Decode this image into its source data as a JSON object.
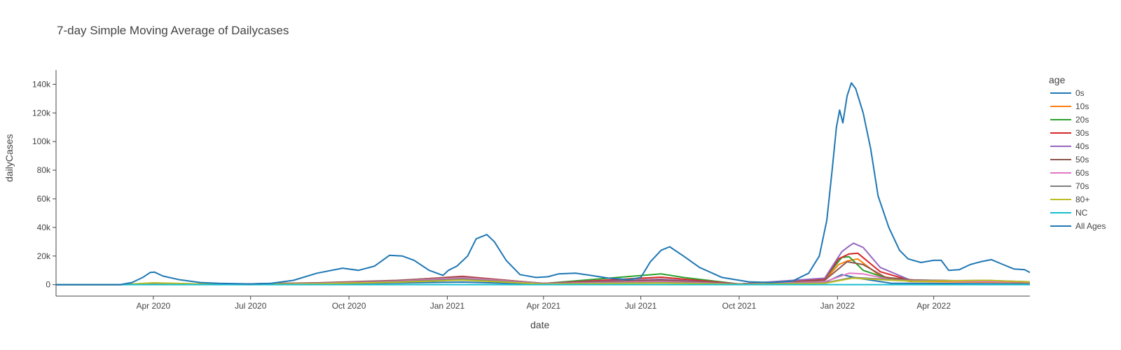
{
  "chart_data": {
    "type": "line",
    "title": "7-day Simple Moving Average of Dailycases",
    "xlabel": "date",
    "ylabel": "dailyCases",
    "legend_title": "age",
    "legend_position": "right",
    "grid": false,
    "x_range": [
      "2020-01-01",
      "2022-06-30"
    ],
    "ylim": [
      -8000,
      150000
    ],
    "x_ticks": [
      "Apr 2020",
      "Jul 2020",
      "Oct 2020",
      "Jan 2021",
      "Apr 2021",
      "Jul 2021",
      "Oct 2021",
      "Jan 2022",
      "Apr 2022"
    ],
    "x_tick_dates": [
      "2020-04-01",
      "2020-07-01",
      "2020-10-01",
      "2021-01-01",
      "2021-04-01",
      "2021-07-01",
      "2021-10-01",
      "2022-01-01",
      "2022-04-01"
    ],
    "y_ticks": [
      0,
      20000,
      40000,
      60000,
      80000,
      100000,
      120000,
      140000
    ],
    "y_tick_labels": [
      "0",
      "20k",
      "40k",
      "60k",
      "80k",
      "100k",
      "120k",
      "140k"
    ],
    "series": [
      {
        "name": "0s",
        "color": "#1f77b4",
        "points": [
          [
            "2020-01-01",
            0
          ],
          [
            "2020-03-01",
            0
          ],
          [
            "2020-04-01",
            300
          ],
          [
            "2020-06-01",
            100
          ],
          [
            "2020-09-01",
            400
          ],
          [
            "2020-11-15",
            1200
          ],
          [
            "2021-01-15",
            1800
          ],
          [
            "2021-04-01",
            300
          ],
          [
            "2021-07-20",
            2600
          ],
          [
            "2021-10-01",
            300
          ],
          [
            "2021-12-20",
            1500
          ],
          [
            "2022-01-05",
            7000
          ],
          [
            "2022-01-20",
            4500
          ],
          [
            "2022-02-20",
            1000
          ],
          [
            "2022-06-30",
            500
          ]
        ]
      },
      {
        "name": "10s",
        "color": "#ff7f0e",
        "points": [
          [
            "2020-01-01",
            0
          ],
          [
            "2020-03-01",
            0
          ],
          [
            "2020-04-01",
            900
          ],
          [
            "2020-06-01",
            200
          ],
          [
            "2020-09-01",
            900
          ],
          [
            "2020-11-15",
            2100
          ],
          [
            "2021-01-15",
            3800
          ],
          [
            "2021-04-01",
            700
          ],
          [
            "2021-07-20",
            5200
          ],
          [
            "2021-10-01",
            400
          ],
          [
            "2021-12-20",
            3000
          ],
          [
            "2022-01-02",
            14000
          ],
          [
            "2022-01-10",
            16500
          ],
          [
            "2022-01-20",
            18000
          ],
          [
            "2022-02-10",
            6000
          ],
          [
            "2022-03-10",
            2200
          ],
          [
            "2022-06-30",
            1500
          ]
        ]
      },
      {
        "name": "20s",
        "color": "#2ca02c",
        "points": [
          [
            "2020-01-01",
            0
          ],
          [
            "2020-03-01",
            0
          ],
          [
            "2020-04-01",
            1100
          ],
          [
            "2020-06-01",
            200
          ],
          [
            "2020-09-01",
            1200
          ],
          [
            "2020-11-15",
            2600
          ],
          [
            "2021-01-15",
            4500
          ],
          [
            "2021-04-01",
            800
          ],
          [
            "2021-07-20",
            7500
          ],
          [
            "2021-08-10",
            5000
          ],
          [
            "2021-10-01",
            400
          ],
          [
            "2021-12-20",
            4000
          ],
          [
            "2022-01-05",
            19000
          ],
          [
            "2022-01-12",
            19500
          ],
          [
            "2022-01-25",
            10000
          ],
          [
            "2022-02-20",
            3500
          ],
          [
            "2022-06-30",
            1800
          ]
        ]
      },
      {
        "name": "30s",
        "color": "#d62728",
        "points": [
          [
            "2020-01-01",
            0
          ],
          [
            "2020-03-01",
            0
          ],
          [
            "2020-04-01",
            900
          ],
          [
            "2020-06-01",
            200
          ],
          [
            "2020-09-01",
            1100
          ],
          [
            "2020-11-15",
            2800
          ],
          [
            "2021-01-15",
            5800
          ],
          [
            "2021-04-01",
            800
          ],
          [
            "2021-07-20",
            5200
          ],
          [
            "2021-10-01",
            400
          ],
          [
            "2021-12-20",
            4000
          ],
          [
            "2022-01-02",
            18000
          ],
          [
            "2022-01-12",
            21500
          ],
          [
            "2022-01-20",
            22000
          ],
          [
            "2022-02-10",
            9000
          ],
          [
            "2022-03-10",
            3000
          ],
          [
            "2022-06-30",
            1800
          ]
        ]
      },
      {
        "name": "40s",
        "color": "#9467bd",
        "points": [
          [
            "2020-01-01",
            0
          ],
          [
            "2020-03-01",
            0
          ],
          [
            "2020-04-01",
            800
          ],
          [
            "2020-06-01",
            200
          ],
          [
            "2020-09-01",
            1100
          ],
          [
            "2020-11-15",
            2700
          ],
          [
            "2021-01-15",
            4800
          ],
          [
            "2021-04-01",
            900
          ],
          [
            "2021-07-20",
            3800
          ],
          [
            "2021-10-01",
            400
          ],
          [
            "2021-12-20",
            4500
          ],
          [
            "2022-01-05",
            23000
          ],
          [
            "2022-01-12",
            27000
          ],
          [
            "2022-01-16",
            29000
          ],
          [
            "2022-01-25",
            26000
          ],
          [
            "2022-02-10",
            12000
          ],
          [
            "2022-03-10",
            3200
          ],
          [
            "2022-06-30",
            2000
          ]
        ]
      },
      {
        "name": "50s",
        "color": "#8c564b",
        "points": [
          [
            "2020-01-01",
            0
          ],
          [
            "2020-03-01",
            0
          ],
          [
            "2020-04-01",
            700
          ],
          [
            "2020-06-01",
            200
          ],
          [
            "2020-09-01",
            1300
          ],
          [
            "2020-11-15",
            3000
          ],
          [
            "2021-01-15",
            5500
          ],
          [
            "2021-04-01",
            900
          ],
          [
            "2021-07-20",
            3200
          ],
          [
            "2021-10-01",
            400
          ],
          [
            "2021-12-20",
            3000
          ],
          [
            "2022-01-10",
            16000
          ],
          [
            "2022-01-25",
            14000
          ],
          [
            "2022-02-15",
            5000
          ],
          [
            "2022-03-15",
            3200
          ],
          [
            "2022-06-30",
            2000
          ]
        ]
      },
      {
        "name": "60s",
        "color": "#e377c2",
        "points": [
          [
            "2020-01-01",
            0
          ],
          [
            "2020-03-01",
            0
          ],
          [
            "2020-04-01",
            700
          ],
          [
            "2020-06-01",
            100
          ],
          [
            "2020-09-01",
            900
          ],
          [
            "2020-11-15",
            2400
          ],
          [
            "2021-01-15",
            4800
          ],
          [
            "2021-04-01",
            700
          ],
          [
            "2021-07-20",
            2200
          ],
          [
            "2021-10-01",
            300
          ],
          [
            "2021-12-20",
            2000
          ],
          [
            "2022-01-12",
            8000
          ],
          [
            "2022-01-25",
            7500
          ],
          [
            "2022-02-20",
            3500
          ],
          [
            "2022-03-15",
            2800
          ],
          [
            "2022-06-30",
            1800
          ]
        ]
      },
      {
        "name": "70s",
        "color": "#7f7f7f",
        "points": [
          [
            "2020-01-01",
            0
          ],
          [
            "2020-03-01",
            0
          ],
          [
            "2020-04-01",
            800
          ],
          [
            "2020-06-01",
            100
          ],
          [
            "2020-09-01",
            700
          ],
          [
            "2020-11-15",
            2000
          ],
          [
            "2021-01-15",
            4000
          ],
          [
            "2021-04-01",
            500
          ],
          [
            "2021-07-20",
            1500
          ],
          [
            "2021-10-01",
            300
          ],
          [
            "2021-12-20",
            1200
          ],
          [
            "2022-01-15",
            5000
          ],
          [
            "2022-02-10",
            4000
          ],
          [
            "2022-03-15",
            2500
          ],
          [
            "2022-05-20",
            3000
          ],
          [
            "2022-06-30",
            2000
          ]
        ]
      },
      {
        "name": "80+",
        "color": "#bcbd22",
        "points": [
          [
            "2020-01-01",
            0
          ],
          [
            "2020-03-01",
            0
          ],
          [
            "2020-04-01",
            1300
          ],
          [
            "2020-06-01",
            100
          ],
          [
            "2020-09-01",
            600
          ],
          [
            "2020-11-15",
            1700
          ],
          [
            "2021-01-15",
            3200
          ],
          [
            "2021-04-01",
            400
          ],
          [
            "2021-07-20",
            1200
          ],
          [
            "2021-10-01",
            200
          ],
          [
            "2021-12-20",
            900
          ],
          [
            "2022-01-15",
            4500
          ],
          [
            "2022-02-10",
            3500
          ],
          [
            "2022-03-15",
            2300
          ],
          [
            "2022-05-20",
            3000
          ],
          [
            "2022-06-30",
            2000
          ]
        ]
      },
      {
        "name": "NC",
        "color": "#17becf",
        "points": [
          [
            "2020-01-01",
            0
          ],
          [
            "2022-06-30",
            0
          ]
        ]
      },
      {
        "name": "All Ages",
        "color": "#1f77b4",
        "points": [
          [
            "2020-01-01",
            0
          ],
          [
            "2020-03-01",
            0
          ],
          [
            "2020-03-12",
            1500
          ],
          [
            "2020-03-22",
            5000
          ],
          [
            "2020-03-29",
            8500
          ],
          [
            "2020-04-02",
            8800
          ],
          [
            "2020-04-10",
            6000
          ],
          [
            "2020-04-25",
            3500
          ],
          [
            "2020-05-15",
            1500
          ],
          [
            "2020-06-01",
            900
          ],
          [
            "2020-07-01",
            500
          ],
          [
            "2020-07-20",
            900
          ],
          [
            "2020-08-10",
            3000
          ],
          [
            "2020-09-01",
            8000
          ],
          [
            "2020-09-25",
            11500
          ],
          [
            "2020-10-10",
            10000
          ],
          [
            "2020-10-25",
            13000
          ],
          [
            "2020-11-08",
            20500
          ],
          [
            "2020-11-20",
            20000
          ],
          [
            "2020-12-01",
            17000
          ],
          [
            "2020-12-15",
            10000
          ],
          [
            "2020-12-28",
            6500
          ],
          [
            "2021-01-02",
            10000
          ],
          [
            "2021-01-10",
            13000
          ],
          [
            "2021-01-20",
            20000
          ],
          [
            "2021-01-28",
            32000
          ],
          [
            "2021-02-07",
            35000
          ],
          [
            "2021-02-14",
            30000
          ],
          [
            "2021-02-25",
            17000
          ],
          [
            "2021-03-10",
            7000
          ],
          [
            "2021-03-25",
            5000
          ],
          [
            "2021-04-05",
            5500
          ],
          [
            "2021-04-15",
            7500
          ],
          [
            "2021-05-01",
            8000
          ],
          [
            "2021-05-15",
            6500
          ],
          [
            "2021-06-01",
            4500
          ],
          [
            "2021-06-20",
            3500
          ],
          [
            "2021-07-01",
            5000
          ],
          [
            "2021-07-10",
            16000
          ],
          [
            "2021-07-20",
            24000
          ],
          [
            "2021-07-28",
            26500
          ],
          [
            "2021-08-10",
            20000
          ],
          [
            "2021-08-25",
            12000
          ],
          [
            "2021-09-15",
            5000
          ],
          [
            "2021-10-10",
            2000
          ],
          [
            "2021-11-01",
            1500
          ],
          [
            "2021-11-20",
            2500
          ],
          [
            "2021-12-05",
            8000
          ],
          [
            "2021-12-15",
            20000
          ],
          [
            "2021-12-22",
            45000
          ],
          [
            "2021-12-27",
            80000
          ],
          [
            "2021-12-31",
            110000
          ],
          [
            "2022-01-03",
            122000
          ],
          [
            "2022-01-06",
            113000
          ],
          [
            "2022-01-10",
            132000
          ],
          [
            "2022-01-14",
            141000
          ],
          [
            "2022-01-18",
            137000
          ],
          [
            "2022-01-25",
            120000
          ],
          [
            "2022-02-01",
            95000
          ],
          [
            "2022-02-08",
            62000
          ],
          [
            "2022-02-18",
            40000
          ],
          [
            "2022-02-28",
            24000
          ],
          [
            "2022-03-08",
            18000
          ],
          [
            "2022-03-20",
            15500
          ],
          [
            "2022-04-01",
            17000
          ],
          [
            "2022-04-08",
            17000
          ],
          [
            "2022-04-15",
            10000
          ],
          [
            "2022-04-25",
            10500
          ],
          [
            "2022-05-05",
            14000
          ],
          [
            "2022-05-15",
            16000
          ],
          [
            "2022-05-25",
            17500
          ],
          [
            "2022-06-05",
            14000
          ],
          [
            "2022-06-15",
            11000
          ],
          [
            "2022-06-25",
            10500
          ],
          [
            "2022-06-30",
            8500
          ]
        ]
      }
    ]
  }
}
